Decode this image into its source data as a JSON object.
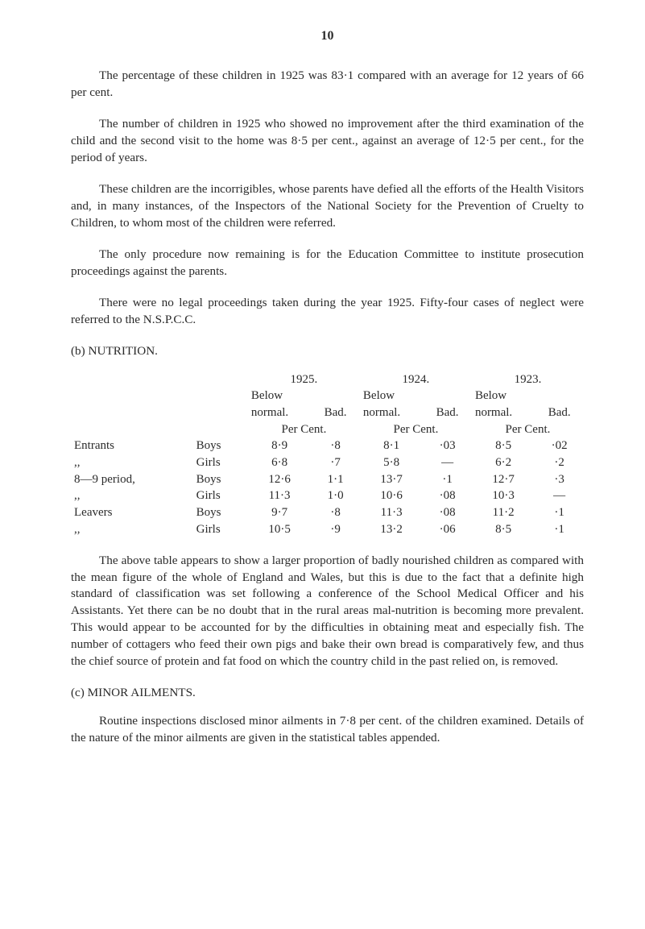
{
  "page_number": "10",
  "paragraphs": {
    "p1": "The percentage of these children in 1925 was 83·1 compared with an average for 12 years of 66 per cent.",
    "p2": "The number of children in 1925 who showed no improvement after the third examination of the child and the second visit to the home was 8·5 per cent., against an average of 12·5 per cent., for the period of years.",
    "p3": "These children are the incorrigibles, whose parents have defied all the efforts of the Health Visitors and, in many instances, of the Inspectors of the National Society for the Prevention of Cruelty to Children, to whom most of the children were referred.",
    "p4": "The only procedure now remaining is for the Education Committee to institute prosecution proceedings against the parents.",
    "p5": "There were no legal proceedings taken during the year 1925. Fifty-four cases of neglect were referred to the N.S.P.C.C.",
    "p6": "The above table appears to show a larger proportion of badly nourished children as compared with the mean figure of the whole of England and Wales, but this is due to the fact that a definite high standard of classification was set following a conference of the School Medical Officer and his Assistants. Yet there can be no doubt that in the rural areas mal-nutrition is becoming more prevalent. This would appear to be accounted for by the difficulties in obtaining meat and especially fish. The number of cottagers who feed their own pigs and bake their own bread is comparatively few, and thus the chief source of protein and fat food on which the country child in the past relied on, is removed.",
    "p7": "Routine inspections disclosed minor ailments in 7·8 per cent. of the children examined. Details of the nature of the minor ailments are given in the statistical tables appended."
  },
  "sections": {
    "b": "(b) NUTRITION.",
    "c": "(c) MINOR AILMENTS."
  },
  "table": {
    "years": [
      "1925.",
      "1924.",
      "1923."
    ],
    "header_below": "Below",
    "header_normal": "normal.",
    "header_bad": "Bad.",
    "header_percent": "Per Cent.",
    "rows": [
      {
        "label": "Entrants",
        "sub": "Boys",
        "v": [
          "8·9",
          "·8",
          "8·1",
          "·03",
          "8·5",
          "·02"
        ]
      },
      {
        "label": ",,",
        "sub": "Girls",
        "v": [
          "6·8",
          "·7",
          "5·8",
          "—",
          "6·2",
          "·2"
        ]
      },
      {
        "label": "8—9 period,",
        "sub": "Boys",
        "v": [
          "12·6",
          "1·1",
          "13·7",
          "·1",
          "12·7",
          "·3"
        ]
      },
      {
        "label": ",,",
        "sub": "Girls",
        "v": [
          "11·3",
          "1·0",
          "10·6",
          "·08",
          "10·3",
          "—"
        ]
      },
      {
        "label": "Leavers",
        "sub": "Boys",
        "v": [
          "9·7",
          "·8",
          "11·3",
          "·08",
          "11·2",
          "·1"
        ]
      },
      {
        "label": ",,",
        "sub": "Girls",
        "v": [
          "10·5",
          "·9",
          "13·2",
          "·06",
          "8·5",
          "·1"
        ]
      }
    ]
  }
}
